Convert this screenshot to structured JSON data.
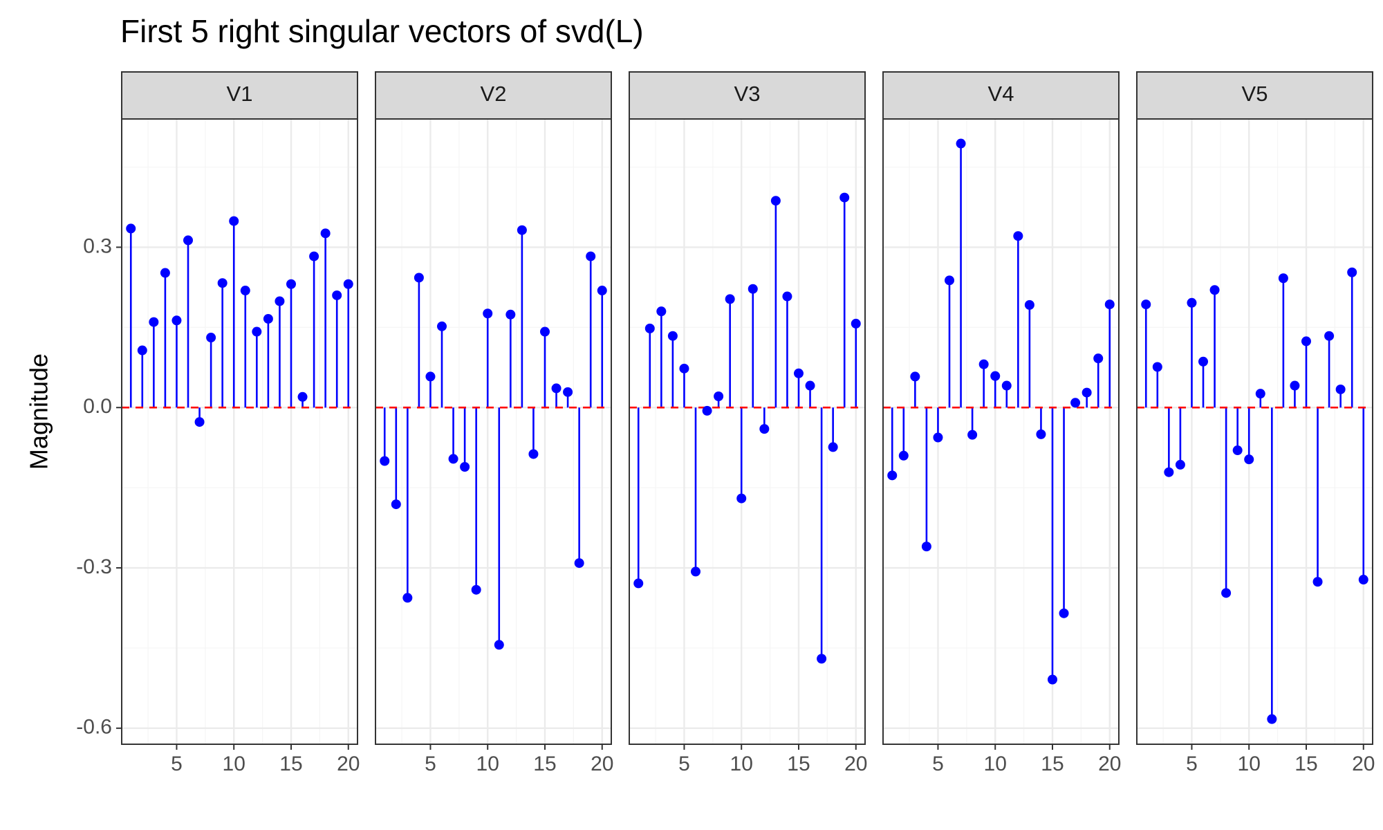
{
  "chart_data": {
    "type": "stem",
    "title": "First 5 right singular vectors of svd(L)",
    "ylabel": "Magnitude",
    "xlabel": "",
    "xlim": [
      0.2,
      20.8
    ],
    "ylim": [
      -0.63,
      0.54
    ],
    "x_ticks": [
      5,
      10,
      15,
      20
    ],
    "y_ticks": [
      -0.6,
      -0.3,
      0.0,
      0.3
    ],
    "y_tick_labels": [
      "-0.6",
      "-0.3",
      "0.0",
      "0.3"
    ],
    "grid": true,
    "baseline": 0,
    "colors": {
      "stem": "#0000ff",
      "point": "#0000ff",
      "baseline": "#ff0000",
      "strip_background": "#d9d9d9",
      "grid_major": "#ebebeb",
      "grid_minor": "#f5f5f5",
      "panel_border": "#333333"
    },
    "x": [
      1,
      2,
      3,
      4,
      5,
      6,
      7,
      8,
      9,
      10,
      11,
      12,
      13,
      14,
      15,
      16,
      17,
      18,
      19,
      20
    ],
    "panels": [
      {
        "name": "V1",
        "values": [
          0.335,
          0.107,
          0.16,
          0.252,
          0.163,
          0.313,
          -0.027,
          0.131,
          0.233,
          0.349,
          0.219,
          0.142,
          0.166,
          0.199,
          0.231,
          0.02,
          0.283,
          0.326,
          0.21,
          0.231
        ]
      },
      {
        "name": "V2",
        "values": [
          -0.1,
          -0.181,
          -0.356,
          0.243,
          0.058,
          0.152,
          -0.096,
          -0.111,
          -0.341,
          0.176,
          -0.444,
          0.174,
          0.332,
          -0.087,
          0.142,
          0.036,
          0.029,
          -0.291,
          0.283,
          0.219
        ]
      },
      {
        "name": "V3",
        "values": [
          -0.329,
          0.148,
          0.18,
          0.134,
          0.073,
          -0.307,
          -0.006,
          0.021,
          0.203,
          -0.17,
          0.222,
          -0.04,
          0.387,
          0.208,
          0.064,
          0.041,
          -0.47,
          -0.074,
          0.393,
          0.157
        ]
      },
      {
        "name": "V4",
        "values": [
          -0.127,
          -0.09,
          0.058,
          -0.26,
          -0.056,
          0.238,
          0.494,
          -0.051,
          0.081,
          0.059,
          0.041,
          0.321,
          0.192,
          -0.05,
          -0.509,
          -0.385,
          0.009,
          0.028,
          0.092,
          0.193
        ]
      },
      {
        "name": "V5",
        "values": [
          0.193,
          0.076,
          -0.121,
          -0.107,
          0.196,
          0.086,
          0.22,
          -0.347,
          -0.08,
          -0.097,
          0.026,
          -0.583,
          0.242,
          0.041,
          0.124,
          -0.326,
          0.134,
          0.034,
          0.253,
          -0.322
        ]
      }
    ]
  }
}
